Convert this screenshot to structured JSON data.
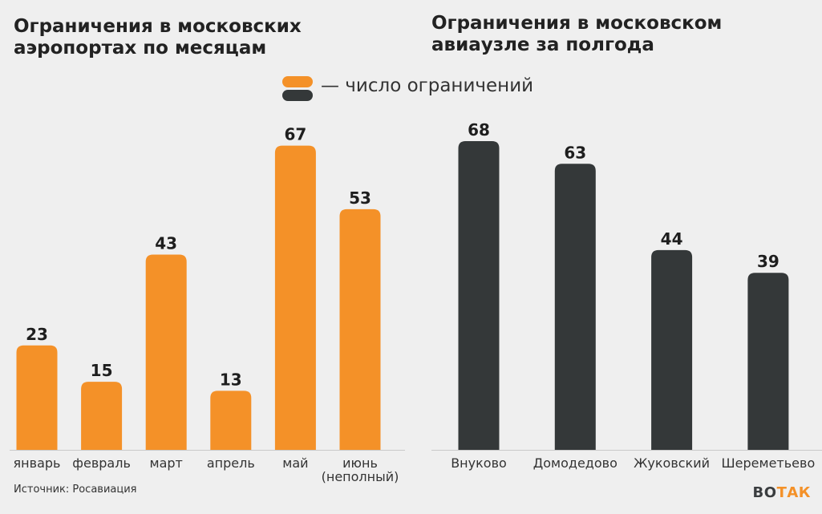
{
  "colors": {
    "orange": "#f49128",
    "dark": "#343839",
    "background": "#efefef"
  },
  "legend": {
    "label": "— число ограничений"
  },
  "source": "Источник: Росавиация",
  "logo": {
    "part1": "ВО",
    "part2": "ТАК"
  },
  "chart_data": [
    {
      "type": "bar",
      "title": "Ограничения в московских аэропортах по месяцам",
      "categories": [
        [
          "январь"
        ],
        [
          "февраль"
        ],
        [
          "март"
        ],
        [
          "апрель"
        ],
        [
          "май"
        ],
        [
          "июнь",
          "(неполный)"
        ]
      ],
      "values": [
        23,
        15,
        43,
        13,
        67,
        53
      ],
      "ylim": [
        0,
        75
      ],
      "color": "#f49128"
    },
    {
      "type": "bar",
      "title": "Ограничения в московском авиаузле за полгода",
      "categories": [
        [
          "Внуково"
        ],
        [
          "Домодедово"
        ],
        [
          "Жуковский"
        ],
        [
          "Шереметьево"
        ]
      ],
      "values": [
        68,
        63,
        44,
        39
      ],
      "ylim": [
        0,
        75
      ],
      "color": "#343839"
    }
  ]
}
